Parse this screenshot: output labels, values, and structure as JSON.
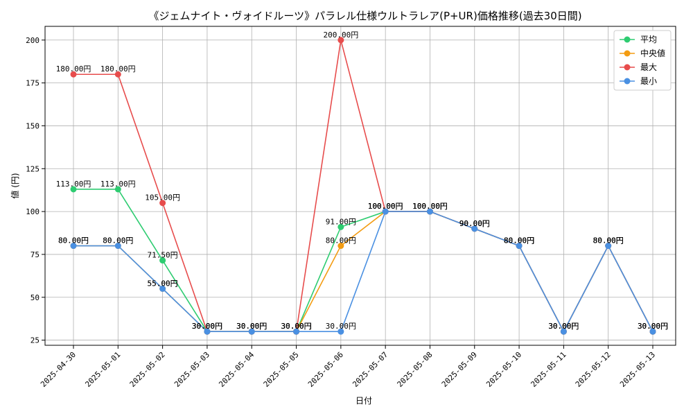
{
  "chart_data": {
    "type": "line",
    "title": "《ジェムナイト・ヴォイドルーツ》パラレル仕様ウルトラレア(P+UR)価格推移(過去30日間)",
    "xlabel": "日付",
    "ylabel": "値 (円)",
    "categories": [
      "2025-04-30",
      "2025-05-01",
      "2025-05-02",
      "2025-05-03",
      "2025-05-04",
      "2025-05-05",
      "2025-05-06",
      "2025-05-07",
      "2025-05-08",
      "2025-05-09",
      "2025-05-10",
      "2025-05-11",
      "2025-05-12",
      "2025-05-13"
    ],
    "ylim": [
      22,
      208
    ],
    "yticks": [
      25,
      50,
      75,
      100,
      125,
      150,
      175,
      200
    ],
    "grid": true,
    "legend_position": "top-right",
    "series": [
      {
        "name": "平均",
        "color": "#2ecc71",
        "values": [
          113,
          113,
          71.5,
          30,
          30,
          30,
          91,
          100,
          100,
          90,
          80,
          30,
          80,
          30
        ],
        "labels": [
          "113.00円",
          "113.00円",
          "71.50円",
          "30.00円",
          "30.00円",
          "30.00円",
          "91.00円",
          "100.00円",
          "100.00円",
          "90.00円",
          "80.00円",
          "30.00円",
          "80.00円",
          "30.00円"
        ]
      },
      {
        "name": "中央値",
        "color": "#f39c12",
        "values": [
          80,
          80,
          55,
          30,
          30,
          30,
          80,
          100,
          100,
          90,
          80,
          30,
          80,
          30
        ],
        "labels": [
          "80.00円",
          "80.00円",
          "55.00円",
          "30.00円",
          "30.00円",
          "30.00円",
          "80.00円",
          "100.00円",
          "100.00円",
          "90.00円",
          "80.00円",
          "30.00円",
          "80.00円",
          "30.00円"
        ]
      },
      {
        "name": "最大",
        "color": "#e74c4c",
        "values": [
          180,
          180,
          105,
          30,
          30,
          30,
          200,
          100,
          100,
          90,
          80,
          30,
          80,
          30
        ],
        "labels": [
          "180.00円",
          "180.00円",
          "105.00円",
          "30.00円",
          "30.00円",
          "30.00円",
          "200.00円",
          "100.00円",
          "100.00円",
          "90.00円",
          "80.00円",
          "30.00円",
          "80.00円",
          "30.00円"
        ]
      },
      {
        "name": "最小",
        "color": "#4a90e2",
        "values": [
          80,
          80,
          55,
          30,
          30,
          30,
          30,
          100,
          100,
          90,
          80,
          30,
          80,
          30
        ],
        "labels": [
          "80.00円",
          "80.00円",
          "55.00円",
          "30.00円",
          "30.00円",
          "30.00円",
          "30.00円",
          "100.00円",
          "100.00円",
          "90.00円",
          "80.00円",
          "30.00円",
          "80.00円",
          "30.00円"
        ]
      }
    ]
  }
}
